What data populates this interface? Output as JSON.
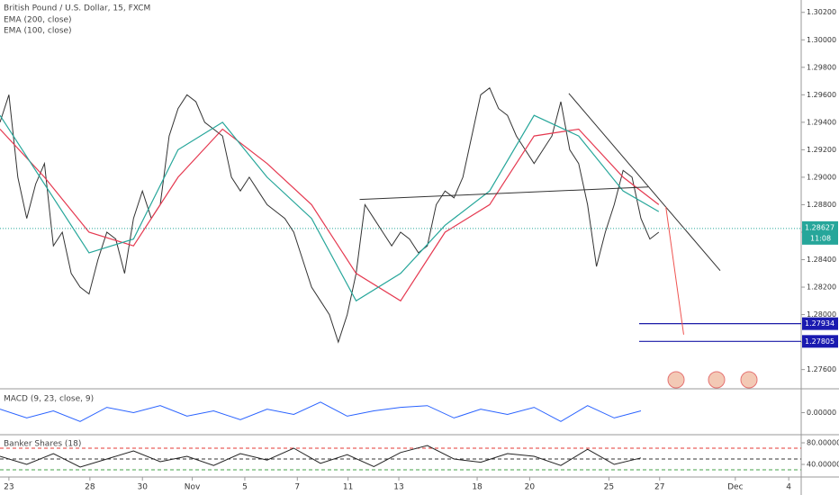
{
  "chart_data": [
    {
      "type": "line",
      "title": "British Pound / U.S. Dollar, 15, FXCM",
      "ylim": [
        1.2746,
        1.3029
      ],
      "yticks": [
        {
          "value": 1.302,
          "label": "1.30200"
        },
        {
          "value": 1.3,
          "label": "1.30000"
        },
        {
          "value": 1.298,
          "label": "1.29800"
        },
        {
          "value": 1.296,
          "label": "1.29600"
        },
        {
          "value": 1.294,
          "label": "1.29400"
        },
        {
          "value": 1.292,
          "label": "1.29200"
        },
        {
          "value": 1.29,
          "label": "1.29000"
        },
        {
          "value": 1.288,
          "label": "1.28800"
        },
        {
          "value": 1.286,
          "label": "1.28600"
        },
        {
          "value": 1.284,
          "label": "1.28400"
        },
        {
          "value": 1.282,
          "label": "1.28200"
        },
        {
          "value": 1.28,
          "label": "1.28000"
        },
        {
          "value": 1.278,
          "label": "1.27800"
        },
        {
          "value": 1.276,
          "label": "1.27600"
        }
      ],
      "xlim": [
        0,
        90
      ],
      "xticks": [
        {
          "value": 1,
          "label": "23"
        },
        {
          "value": 10.1,
          "label": "28"
        },
        {
          "value": 16,
          "label": "30"
        },
        {
          "value": 21.6,
          "label": "Nov"
        },
        {
          "value": 27.5,
          "label": "5"
        },
        {
          "value": 33.4,
          "label": "7"
        },
        {
          "value": 39.1,
          "label": "11"
        },
        {
          "value": 44.8,
          "label": "13"
        },
        {
          "value": 53.6,
          "label": "18"
        },
        {
          "value": 59.5,
          "label": "20"
        },
        {
          "value": 68.4,
          "label": "25"
        },
        {
          "value": 74.1,
          "label": "27"
        },
        {
          "value": 82.6,
          "label": "Dec"
        },
        {
          "value": 88.6,
          "label": "4"
        }
      ],
      "series": [
        {
          "name": "British Pound / U.S. Dollar, 15, FXCM",
          "color": "#333333",
          "x": [
            0,
            1,
            2,
            3,
            4,
            5,
            6,
            7,
            8,
            9,
            10,
            11,
            12,
            13,
            14,
            15,
            16,
            17,
            18,
            19,
            20,
            21,
            22,
            23,
            24,
            25,
            26,
            27,
            28,
            29,
            30,
            31,
            32,
            33,
            34,
            35,
            36,
            37,
            38,
            39,
            40,
            41,
            42,
            43,
            44,
            45,
            46,
            47,
            48,
            49,
            50,
            51,
            52,
            53,
            54,
            55,
            56,
            57,
            58,
            59,
            60,
            61,
            62,
            63,
            64,
            65,
            66,
            67,
            68,
            69,
            70,
            71,
            72,
            73,
            74
          ],
          "values": [
            1.294,
            1.296,
            1.29,
            1.287,
            1.2895,
            1.291,
            1.285,
            1.286,
            1.283,
            1.282,
            1.2815,
            1.284,
            1.286,
            1.2855,
            1.283,
            1.287,
            1.289,
            1.287,
            1.288,
            1.293,
            1.295,
            1.296,
            1.2955,
            1.294,
            1.2935,
            1.293,
            1.29,
            1.289,
            1.29,
            1.289,
            1.288,
            1.2875,
            1.287,
            1.286,
            1.284,
            1.282,
            1.281,
            1.28,
            1.278,
            1.28,
            1.283,
            1.288,
            1.287,
            1.286,
            1.285,
            1.286,
            1.2855,
            1.2845,
            1.285,
            1.288,
            1.289,
            1.2885,
            1.29,
            1.293,
            1.296,
            1.2965,
            1.295,
            1.2945,
            1.293,
            1.292,
            1.291,
            1.292,
            1.293,
            1.2955,
            1.292,
            1.291,
            1.288,
            1.2835,
            1.286,
            1.288,
            1.2905,
            1.29,
            1.287,
            1.2855,
            1.286
          ]
        },
        {
          "name": "EMA (200, close)",
          "color": "#e53950",
          "x": [
            0,
            5,
            10,
            15,
            20,
            25,
            30,
            35,
            40,
            45,
            50,
            55,
            60,
            65,
            70,
            74
          ],
          "values": [
            1.2935,
            1.29,
            1.286,
            1.285,
            1.29,
            1.2935,
            1.291,
            1.288,
            1.283,
            1.281,
            1.286,
            1.288,
            1.293,
            1.2935,
            1.29,
            1.288
          ]
        },
        {
          "name": "EMA (100, close)",
          "color": "#26a69a",
          "x": [
            0,
            5,
            10,
            15,
            20,
            25,
            30,
            35,
            40,
            45,
            50,
            55,
            60,
            65,
            70,
            74
          ],
          "values": [
            1.2945,
            1.2895,
            1.2845,
            1.2855,
            1.292,
            1.294,
            1.29,
            1.287,
            1.281,
            1.283,
            1.2865,
            1.289,
            1.2945,
            1.293,
            1.289,
            1.2875
          ]
        }
      ],
      "last_price": 1.28627,
      "countdown": "11:08",
      "levels": [
        1.27934,
        1.27805
      ],
      "trendlines": [
        {
          "x": [
            63.9,
            80.9
          ],
          "y": [
            1.2961,
            1.2832
          ],
          "color": "#333333"
        },
        {
          "x": [
            40.4,
            72.8
          ],
          "y": [
            1.28838,
            1.28929
          ],
          "color": "#333333"
        },
        {
          "x": [
            74.8,
            76.8
          ],
          "y": [
            1.28784,
            1.27854
          ],
          "color": "#ef5350"
        }
      ]
    },
    {
      "type": "line",
      "title": "MACD (9, 23, close, 9)",
      "ylim": [
        -0.0012,
        0.0012
      ],
      "xlim": [
        0,
        90
      ],
      "yticks": [
        {
          "value": 0,
          "label": "0.00000"
        }
      ],
      "series": [
        {
          "name": "MACD",
          "color": "#2962ff",
          "x": [
            0,
            3,
            6,
            9,
            12,
            15,
            18,
            21,
            24,
            27,
            30,
            33,
            36,
            39,
            42,
            45,
            48,
            51,
            54,
            57,
            60,
            63,
            66,
            69,
            72
          ],
          "values": [
            0.0002,
            -0.0003,
            0.0001,
            -0.0005,
            0.0003,
            0,
            0.0004,
            -0.0002,
            0.0001,
            -0.0004,
            0.0002,
            -0.0001,
            0.0006,
            -0.0002,
            0.0001,
            0.0003,
            0.0004,
            -0.0003,
            0.0002,
            -0.0001,
            0.0003,
            -0.0005,
            0.0004,
            -0.0003,
            0.0001
          ]
        }
      ]
    },
    {
      "type": "line",
      "title": "Banker Shares (18)",
      "ylim": [
        21.7,
        91.7
      ],
      "xlim": [
        0,
        90
      ],
      "yticks": [
        {
          "value": 80,
          "label": "80.00000"
        },
        {
          "value": 40,
          "label": "40.00000"
        }
      ],
      "levels": [
        {
          "value": 70,
          "color": "#e53935"
        },
        {
          "value": 50,
          "color": "#333333"
        },
        {
          "value": 30,
          "color": "#43a047"
        }
      ],
      "series": [
        {
          "name": "Banker Shares",
          "color": "#222222",
          "x": [
            0,
            3,
            6,
            9,
            12,
            15,
            18,
            21,
            24,
            27,
            30,
            33,
            36,
            39,
            42,
            45,
            48,
            51,
            54,
            57,
            60,
            63,
            66,
            69,
            72
          ],
          "values": [
            55,
            40,
            60,
            35,
            50,
            65,
            45,
            55,
            38,
            60,
            48,
            70,
            42,
            58,
            36,
            62,
            75,
            50,
            44,
            60,
            55,
            38,
            68,
            40,
            52
          ]
        }
      ]
    }
  ]
}
